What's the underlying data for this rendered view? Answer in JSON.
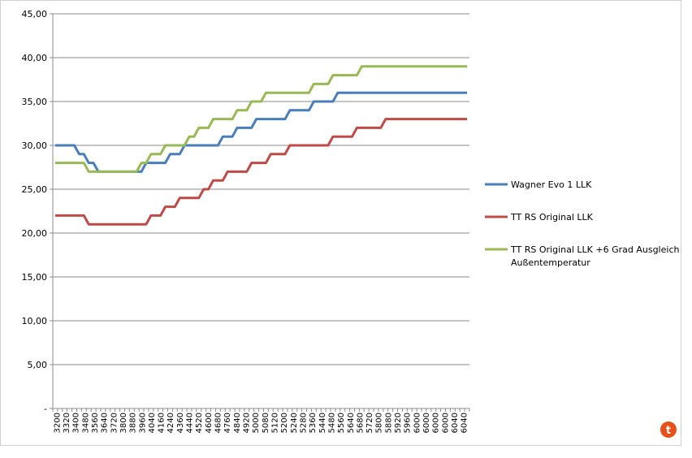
{
  "chart_data": {
    "type": "line",
    "ylim": [
      0,
      45
    ],
    "yticks": [
      "-",
      "5,00",
      "10,00",
      "15,00",
      "20,00",
      "25,00",
      "30,00",
      "35,00",
      "40,00",
      "45,00"
    ],
    "x_labels": [
      "3200",
      "3320",
      "3400",
      "3480",
      "3560",
      "3640",
      "3720",
      "3800",
      "3880",
      "3960",
      "4040",
      "4160",
      "4240",
      "4360",
      "4440",
      "4520",
      "4600",
      "4680",
      "4760",
      "4840",
      "4920",
      "5000",
      "5080",
      "5120",
      "5200",
      "5240",
      "5280",
      "5360",
      "5440",
      "5480",
      "5560",
      "5640",
      "5680",
      "5720",
      "5800",
      "5880",
      "5920",
      "5960",
      "6000",
      "6000",
      "6000",
      "6000",
      "6040",
      "6040"
    ],
    "grid": true,
    "legend_position": "right",
    "series": [
      {
        "name": "Wagner Evo 1 LLK",
        "color": "#4a7ebb",
        "values": [
          30,
          30,
          30,
          30,
          30,
          29,
          29,
          28,
          28,
          27,
          27,
          27,
          27,
          27,
          27,
          27,
          27,
          27,
          27,
          28,
          28,
          28,
          28,
          28,
          29,
          29,
          29,
          30,
          30,
          30,
          30,
          30,
          30,
          30,
          30,
          31,
          31,
          31,
          32,
          32,
          32,
          32,
          33,
          33,
          33,
          33,
          33,
          33,
          33,
          34,
          34,
          34,
          34,
          34,
          35,
          35,
          35,
          35,
          35,
          36,
          36,
          36,
          36,
          36,
          36,
          36,
          36,
          36,
          36,
          36,
          36,
          36,
          36,
          36,
          36,
          36,
          36,
          36,
          36,
          36,
          36,
          36,
          36,
          36,
          36,
          36,
          36
        ]
      },
      {
        "name": "TT RS Original LLK",
        "color": "#be4b48",
        "values": [
          22,
          22,
          22,
          22,
          22,
          22,
          22,
          21,
          21,
          21,
          21,
          21,
          21,
          21,
          21,
          21,
          21,
          21,
          21,
          21,
          22,
          22,
          22,
          23,
          23,
          23,
          24,
          24,
          24,
          24,
          24,
          25,
          25,
          26,
          26,
          26,
          27,
          27,
          27,
          27,
          27,
          28,
          28,
          28,
          28,
          29,
          29,
          29,
          29,
          30,
          30,
          30,
          30,
          30,
          30,
          30,
          30,
          30,
          31,
          31,
          31,
          31,
          31,
          32,
          32,
          32,
          32,
          32,
          32,
          33,
          33,
          33,
          33,
          33,
          33,
          33,
          33,
          33,
          33,
          33,
          33,
          33,
          33,
          33,
          33,
          33,
          33
        ]
      },
      {
        "name": "TT RS Original LLK +6 Grad Ausgleich Außentemperatur",
        "name_lines": [
          "TT RS Original LLK +6 Grad Ausgleich",
          "Außentemperatur"
        ],
        "color": "#98b954",
        "values": [
          28,
          28,
          28,
          28,
          28,
          28,
          28,
          27,
          27,
          27,
          27,
          27,
          27,
          27,
          27,
          27,
          27,
          27,
          28,
          28,
          29,
          29,
          29,
          30,
          30,
          30,
          30,
          30,
          31,
          31,
          32,
          32,
          32,
          33,
          33,
          33,
          33,
          33,
          34,
          34,
          34,
          35,
          35,
          35,
          36,
          36,
          36,
          36,
          36,
          36,
          36,
          36,
          36,
          36,
          37,
          37,
          37,
          37,
          38,
          38,
          38,
          38,
          38,
          38,
          39,
          39,
          39,
          39,
          39,
          39,
          39,
          39,
          39,
          39,
          39,
          39,
          39,
          39,
          39,
          39,
          39,
          39,
          39,
          39,
          39,
          39,
          39
        ]
      }
    ]
  },
  "badge": {
    "glyph": "t",
    "color": "#e8501a"
  }
}
